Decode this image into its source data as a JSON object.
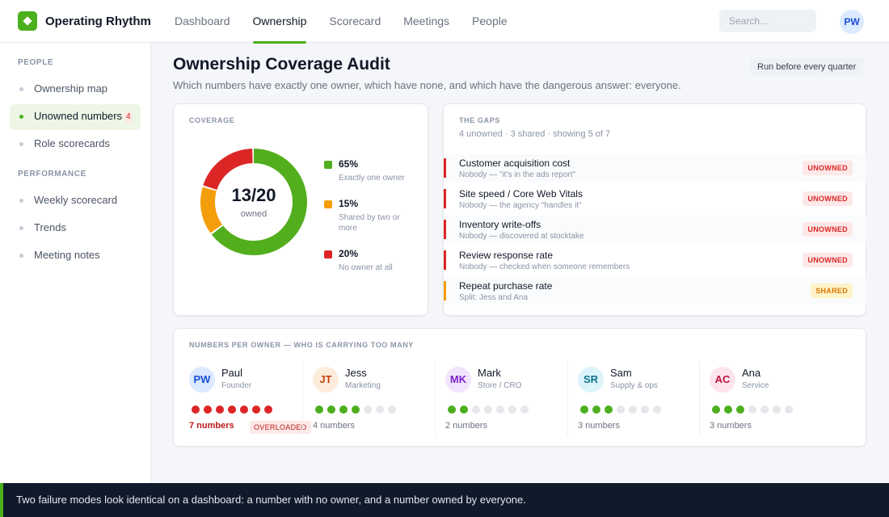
{
  "app": {
    "title": "Operating Rhythm",
    "logo_icon": "diamond-logo-icon",
    "accent": "#4caf1e"
  },
  "nav": {
    "tabs": [
      {
        "label": "Dashboard",
        "active": false
      },
      {
        "label": "Ownership",
        "active": true
      },
      {
        "label": "Scorecard",
        "active": false
      },
      {
        "label": "Meetings",
        "active": false
      },
      {
        "label": "People",
        "active": false
      }
    ]
  },
  "search": {
    "placeholder": "Search…",
    "value": ""
  },
  "user": {
    "initials": "PW"
  },
  "sidebar": {
    "sections": [
      {
        "title": "PEOPLE",
        "items": [
          {
            "label": "Ownership map",
            "active": false
          },
          {
            "label": "Unowned numbers",
            "active": true,
            "badge": "4"
          },
          {
            "label": "Role scorecards",
            "active": false
          }
        ]
      },
      {
        "title": "PERFORMANCE",
        "items": [
          {
            "label": "Weekly scorecard",
            "active": false
          },
          {
            "label": "Trends",
            "active": false
          },
          {
            "label": "Meeting notes",
            "active": false
          }
        ]
      }
    ]
  },
  "page": {
    "title": "Ownership Coverage Audit",
    "subtitle": "Which numbers have exactly one owner, which have none, and which have the dangerous answer: everyone.",
    "action_label": "Run before every quarter"
  },
  "coverage": {
    "label": "COVERAGE",
    "center_value": "13/20",
    "center_caption": "owned",
    "segments": [
      {
        "pct": 65,
        "pct_label": "65%",
        "desc": "Exactly one owner",
        "color": "#52ae1c"
      },
      {
        "pct": 15,
        "pct_label": "15%",
        "desc": "Shared by two or more",
        "color": "#f59e0b"
      },
      {
        "pct": 20,
        "pct_label": "20%",
        "desc": "No owner at all",
        "color": "#dc2626"
      }
    ]
  },
  "gaps": {
    "label": "THE GAPS",
    "meta": "4 unowned · 3 shared · showing 5 of 7",
    "rows": [
      {
        "name": "Customer acquisition cost",
        "note": "Nobody — \"it's in the ads report\"",
        "tag": "UNOWNED",
        "kind": "unowned"
      },
      {
        "name": "Site speed / Core Web Vitals",
        "note": "Nobody — the agency \"handles it\"",
        "tag": "UNOWNED",
        "kind": "unowned"
      },
      {
        "name": "Inventory write-offs",
        "note": "Nobody — discovered at stocktake",
        "tag": "UNOWNED",
        "kind": "unowned"
      },
      {
        "name": "Review response rate",
        "note": "Nobody — checked when someone remembers",
        "tag": "UNOWNED",
        "kind": "unowned"
      },
      {
        "name": "Repeat purchase rate",
        "note": "Split: Jess and Ana",
        "tag": "SHARED",
        "kind": "shared"
      }
    ],
    "colors": {
      "unowned": "#dc2626",
      "shared": "#f59e0b"
    }
  },
  "owners": {
    "label": "NUMBERS PER OWNER — WHO IS CARRYING TOO MANY",
    "capacity": 7,
    "people": [
      {
        "initials": "PW",
        "name": "Paul",
        "role": "Founder",
        "count": 7,
        "count_label": "7 numbers",
        "overloaded": true,
        "tag": "OVERLOADED",
        "avatar_bg": "#dbeafe",
        "avatar_fg": "#1d4ed8"
      },
      {
        "initials": "JT",
        "name": "Jess",
        "role": "Marketing",
        "count": 4,
        "count_label": "4 numbers",
        "overloaded": false,
        "avatar_bg": "#fdecdc",
        "avatar_fg": "#c2410c"
      },
      {
        "initials": "MK",
        "name": "Mark",
        "role": "Store / CRO",
        "count": 2,
        "count_label": "2 numbers",
        "overloaded": false,
        "avatar_bg": "#f1e5fd",
        "avatar_fg": "#7e22ce"
      },
      {
        "initials": "SR",
        "name": "Sam",
        "role": "Supply & ops",
        "count": 3,
        "count_label": "3 numbers",
        "overloaded": false,
        "avatar_bg": "#dcf3fa",
        "avatar_fg": "#0e7490"
      },
      {
        "initials": "AC",
        "name": "Ana",
        "role": "Service",
        "count": 3,
        "count_label": "3 numbers",
        "overloaded": false,
        "avatar_bg": "#fde4ec",
        "avatar_fg": "#be123c"
      }
    ],
    "colors": {
      "filled": "#4caf1e",
      "overloaded": "#dc2626",
      "empty": "#e5e7eb"
    }
  },
  "banner": {
    "text": "Two failure modes look identical on a dashboard: a number with no owner, and a number owned by everyone."
  }
}
